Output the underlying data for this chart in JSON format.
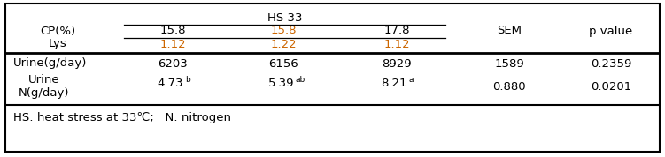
{
  "title_hs": "HS 33",
  "col_header_cp": "CP(%)",
  "col_header_lys": "Lys",
  "col_header_sem": "SEM",
  "col_header_pvalue": "p value",
  "cp_values": [
    "15.8",
    "15.8",
    "17.8"
  ],
  "lys_values": [
    "1.12",
    "1.22",
    "1.12"
  ],
  "hs33_cp_colors": [
    "#000000",
    "#cc6600",
    "#000000"
  ],
  "lys_color": "#cc6600",
  "row1_label": "Urine(g/day)",
  "row1_values": [
    "6203",
    "6156",
    "8929",
    "1589",
    "0.2359"
  ],
  "row2_label_line1": "Urine",
  "row2_label_line2": "N(g/day)",
  "row2_val1": "4.73",
  "row2_sup1": "b",
  "row2_val2": "5.39",
  "row2_sup2": "ab",
  "row2_val3": "8.21",
  "row2_sup3": "a",
  "row2_sem": "0.880",
  "row2_pval": "0.0201",
  "footnote": "HS: heat stress at 33℃;   N: nitrogen",
  "bg_color": "#ffffff",
  "border_color": "#000000",
  "table_text_color": "#000000",
  "font_size": 9.5
}
